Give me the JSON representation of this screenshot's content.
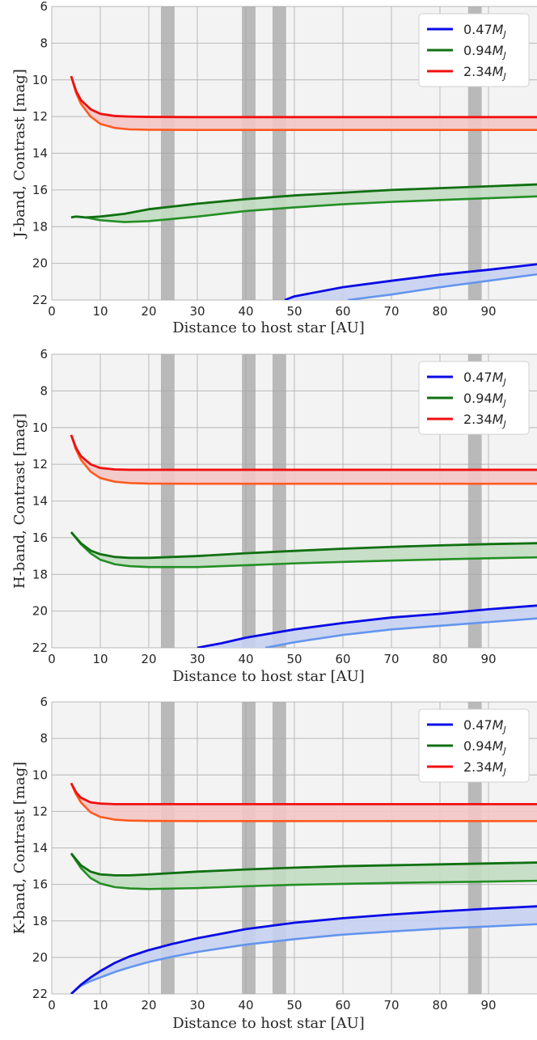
{
  "chart_data": [
    {
      "type": "line",
      "ylabel": "J-band, Contrast [mag]",
      "xlabel": "Distance to host star [AU]",
      "xlim": [
        0,
        100
      ],
      "ylim": [
        22,
        6
      ],
      "x_ticks": [
        "0",
        "10",
        "20",
        "30",
        "40",
        "50",
        "60",
        "70",
        "80",
        "90"
      ],
      "y_ticks": [
        "6",
        "8",
        "10",
        "12",
        "14",
        "16",
        "18",
        "20",
        "22"
      ],
      "grid": true,
      "legend_position": "top-right",
      "gray_bands": [
        [
          22.5,
          25.3
        ],
        [
          39.2,
          42.0
        ],
        [
          45.5,
          48.3
        ],
        [
          85.8,
          88.6
        ]
      ],
      "series": [
        {
          "name": "0.47M_J",
          "legend_label": "0.47",
          "color": "#0a0ae6",
          "light_color": "#6495ed",
          "fill": "#c6d2f2",
          "upper": {
            "x": [
              48,
              50,
              60,
              70,
              80,
              90,
              100
            ],
            "y": [
              22.0,
              21.8,
              21.3,
              20.95,
              20.62,
              20.35,
              20.05
            ]
          },
          "lower": {
            "x": [
              61,
              70,
              80,
              90,
              100
            ],
            "y": [
              22.0,
              21.7,
              21.3,
              20.95,
              20.6
            ]
          }
        },
        {
          "name": "0.94M_J",
          "legend_label": "0.94",
          "color": "#107010",
          "light_color": "#248f24",
          "fill": "#c2dbc2",
          "upper": {
            "x": [
              4,
              5,
              7,
              10,
              15,
              20,
              30,
              40,
              50,
              60,
              70,
              80,
              90,
              100
            ],
            "y": [
              17.5,
              17.45,
              17.5,
              17.45,
              17.3,
              17.05,
              16.75,
              16.5,
              16.3,
              16.15,
              16.0,
              15.9,
              15.8,
              15.7
            ]
          },
          "lower": {
            "x": [
              4,
              5,
              7,
              10,
              15,
              20,
              30,
              40,
              50,
              60,
              70,
              80,
              90,
              100
            ],
            "y": [
              17.5,
              17.45,
              17.5,
              17.65,
              17.75,
              17.7,
              17.45,
              17.15,
              16.95,
              16.78,
              16.65,
              16.55,
              16.45,
              16.35
            ]
          }
        },
        {
          "name": "2.34M_J",
          "legend_label": "2.34",
          "color": "#f01010",
          "light_color": "#ff5a1f",
          "fill": "#f4c6c6",
          "upper": {
            "x": [
              4,
              5,
              6,
              8,
              10,
              13,
              16,
              20,
              30,
              40,
              60,
              80,
              100
            ],
            "y": [
              9.8,
              10.6,
              11.1,
              11.6,
              11.85,
              11.97,
              12.0,
              12.02,
              12.03,
              12.03,
              12.03,
              12.03,
              12.03
            ]
          },
          "lower": {
            "x": [
              4,
              5,
              6,
              8,
              10,
              13,
              16,
              20,
              30,
              40,
              60,
              80,
              100
            ],
            "y": [
              9.8,
              10.7,
              11.3,
              12.0,
              12.4,
              12.62,
              12.7,
              12.72,
              12.73,
              12.73,
              12.73,
              12.73,
              12.73
            ]
          }
        }
      ]
    },
    {
      "type": "line",
      "ylabel": "H-band, Contrast [mag]",
      "xlabel": "Distance to host star [AU]",
      "xlim": [
        0,
        100
      ],
      "ylim": [
        22,
        6
      ],
      "x_ticks": [
        "0",
        "10",
        "20",
        "30",
        "40",
        "50",
        "60",
        "70",
        "80",
        "90"
      ],
      "y_ticks": [
        "6",
        "8",
        "10",
        "12",
        "14",
        "16",
        "18",
        "20",
        "22"
      ],
      "grid": true,
      "legend_position": "top-right",
      "gray_bands": [
        [
          22.5,
          25.3
        ],
        [
          39.2,
          42.0
        ],
        [
          45.5,
          48.3
        ],
        [
          85.8,
          88.6
        ]
      ],
      "series": [
        {
          "name": "0.47M_J",
          "legend_label": "0.47",
          "color": "#0a0ae6",
          "light_color": "#6495ed",
          "fill": "#c6d2f2",
          "upper": {
            "x": [
              30,
              35,
              40,
              50,
              60,
              70,
              80,
              90,
              100
            ],
            "y": [
              22.0,
              21.75,
              21.45,
              21.0,
              20.65,
              20.35,
              20.15,
              19.9,
              19.7
            ]
          },
          "lower": {
            "x": [
              44,
              50,
              60,
              70,
              80,
              90,
              100
            ],
            "y": [
              22.0,
              21.7,
              21.3,
              21.0,
              20.8,
              20.6,
              20.4
            ]
          }
        },
        {
          "name": "0.94M_J",
          "legend_label": "0.94",
          "color": "#107010",
          "light_color": "#248f24",
          "fill": "#c2dbc2",
          "upper": {
            "x": [
              4,
              6,
              8,
              10,
              13,
              16,
              20,
              30,
              40,
              50,
              60,
              70,
              80,
              90,
              100
            ],
            "y": [
              15.7,
              16.3,
              16.7,
              16.9,
              17.05,
              17.1,
              17.1,
              17.0,
              16.85,
              16.72,
              16.6,
              16.5,
              16.42,
              16.35,
              16.3
            ]
          },
          "lower": {
            "x": [
              4,
              6,
              8,
              10,
              13,
              16,
              20,
              30,
              40,
              50,
              60,
              70,
              80,
              90,
              100
            ],
            "y": [
              15.7,
              16.35,
              16.85,
              17.2,
              17.45,
              17.55,
              17.6,
              17.6,
              17.5,
              17.4,
              17.32,
              17.25,
              17.18,
              17.12,
              17.07
            ]
          }
        },
        {
          "name": "2.34M_J",
          "legend_label": "2.34",
          "color": "#f01010",
          "light_color": "#ff5a1f",
          "fill": "#f4c6c6",
          "upper": {
            "x": [
              4,
              5,
              6,
              8,
              10,
              13,
              16,
              20,
              30,
              40,
              60,
              80,
              100
            ],
            "y": [
              10.4,
              11.1,
              11.55,
              12.0,
              12.2,
              12.28,
              12.3,
              12.3,
              12.3,
              12.3,
              12.3,
              12.3,
              12.3
            ]
          },
          "lower": {
            "x": [
              4,
              5,
              6,
              8,
              10,
              13,
              16,
              20,
              30,
              40,
              60,
              80,
              100
            ],
            "y": [
              10.4,
              11.2,
              11.75,
              12.4,
              12.75,
              12.95,
              13.02,
              13.05,
              13.06,
              13.06,
              13.06,
              13.06,
              13.06
            ]
          }
        }
      ]
    },
    {
      "type": "line",
      "ylabel": "K-band, Contrast [mag]",
      "xlabel": "Distance to host star [AU]",
      "xlim": [
        0,
        100
      ],
      "ylim": [
        22,
        6
      ],
      "x_ticks": [
        "0",
        "10",
        "20",
        "30",
        "40",
        "50",
        "60",
        "70",
        "80",
        "90"
      ],
      "y_ticks": [
        "6",
        "8",
        "10",
        "12",
        "14",
        "16",
        "18",
        "20",
        "22"
      ],
      "grid": true,
      "legend_position": "top-right",
      "gray_bands": [
        [
          22.5,
          25.3
        ],
        [
          39.2,
          42.0
        ],
        [
          45.5,
          48.3
        ],
        [
          85.8,
          88.6
        ]
      ],
      "series": [
        {
          "name": "0.47M_J",
          "legend_label": "0.47",
          "color": "#0a0ae6",
          "light_color": "#6495ed",
          "fill": "#c6d2f2",
          "upper": {
            "x": [
              4,
              6,
              8,
              10,
              13,
              16,
              20,
              25,
              30,
              40,
              50,
              60,
              70,
              80,
              90,
              100
            ],
            "y": [
              22.0,
              21.5,
              21.1,
              20.75,
              20.3,
              19.95,
              19.6,
              19.25,
              18.95,
              18.45,
              18.1,
              17.85,
              17.65,
              17.48,
              17.33,
              17.2
            ]
          },
          "lower": {
            "x": [
              4,
              6,
              8,
              10,
              13,
              16,
              20,
              25,
              30,
              40,
              50,
              60,
              70,
              80,
              90,
              100
            ],
            "y": [
              22.0,
              21.55,
              21.3,
              21.1,
              20.8,
              20.55,
              20.25,
              19.95,
              19.7,
              19.3,
              19.0,
              18.75,
              18.58,
              18.42,
              18.3,
              18.18
            ]
          }
        },
        {
          "name": "0.94M_J",
          "legend_label": "0.94",
          "color": "#107010",
          "light_color": "#248f24",
          "fill": "#c2dbc2",
          "upper": {
            "x": [
              4,
              6,
              8,
              10,
              13,
              16,
              20,
              30,
              40,
              50,
              60,
              70,
              80,
              90,
              100
            ],
            "y": [
              14.3,
              14.95,
              15.3,
              15.45,
              15.5,
              15.5,
              15.45,
              15.3,
              15.18,
              15.08,
              15.0,
              14.95,
              14.9,
              14.85,
              14.8
            ]
          },
          "lower": {
            "x": [
              4,
              6,
              8,
              10,
              13,
              16,
              20,
              30,
              40,
              50,
              60,
              70,
              80,
              90,
              100
            ],
            "y": [
              14.3,
              15.1,
              15.65,
              15.95,
              16.15,
              16.22,
              16.25,
              16.2,
              16.1,
              16.02,
              15.97,
              15.92,
              15.88,
              15.84,
              15.8
            ]
          }
        },
        {
          "name": "2.34M_J",
          "legend_label": "2.34",
          "color": "#f01010",
          "light_color": "#ff5a1f",
          "fill": "#f4c6c6",
          "upper": {
            "x": [
              4,
              5,
              6,
              8,
              10,
              13,
              16,
              20,
              30,
              40,
              60,
              80,
              100
            ],
            "y": [
              10.45,
              10.95,
              11.25,
              11.5,
              11.57,
              11.6,
              11.6,
              11.6,
              11.6,
              11.6,
              11.6,
              11.6,
              11.6
            ]
          },
          "lower": {
            "x": [
              4,
              5,
              6,
              8,
              10,
              13,
              16,
              20,
              30,
              40,
              60,
              80,
              100
            ],
            "y": [
              10.45,
              11.05,
              11.5,
              12.05,
              12.3,
              12.45,
              12.5,
              12.52,
              12.53,
              12.53,
              12.53,
              12.53,
              12.53
            ]
          }
        }
      ]
    }
  ]
}
